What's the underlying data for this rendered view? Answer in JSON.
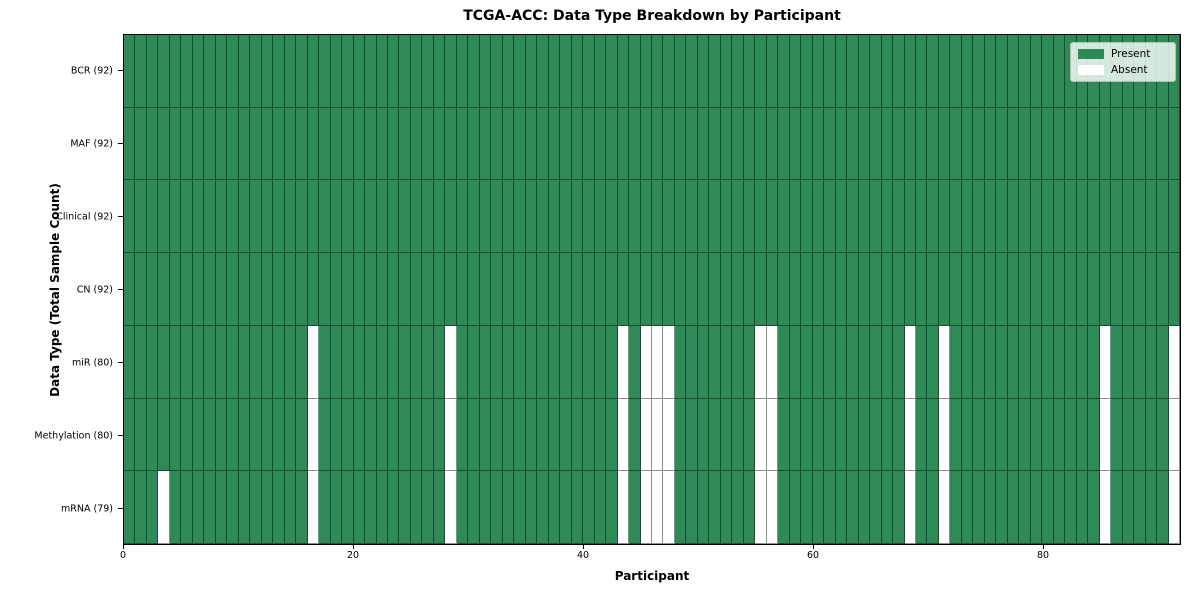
{
  "chart_data": {
    "type": "heatmap",
    "title": "TCGA-ACC: Data Type Breakdown by Participant",
    "xlabel": "Participant",
    "ylabel": "Data Type (Total Sample Count)",
    "n_participants": 92,
    "x_axis": {
      "ticks": [
        0,
        20,
        40,
        60,
        80
      ],
      "range": [
        0,
        92
      ]
    },
    "cell_colors": {
      "present": "#2e8b57",
      "absent": "#ffffff"
    },
    "rows": [
      {
        "label": "BCR (92)",
        "data_type": "BCR",
        "present_count": 92,
        "absent_participants": []
      },
      {
        "label": "MAF (92)",
        "data_type": "MAF",
        "present_count": 92,
        "absent_participants": []
      },
      {
        "label": "Clinical (92)",
        "data_type": "Clinical",
        "present_count": 92,
        "absent_participants": []
      },
      {
        "label": "CN (92)",
        "data_type": "CN",
        "present_count": 92,
        "absent_participants": []
      },
      {
        "label": "miR (80)",
        "data_type": "miR",
        "present_count": 80,
        "absent_participants": [
          16,
          28,
          43,
          45,
          46,
          47,
          55,
          56,
          68,
          71,
          85,
          91
        ]
      },
      {
        "label": "Methylation (80)",
        "data_type": "Methylation",
        "present_count": 80,
        "absent_participants": [
          16,
          28,
          43,
          45,
          46,
          47,
          55,
          56,
          68,
          71,
          85,
          91
        ]
      },
      {
        "label": "mRNA (79)",
        "data_type": "mRNA",
        "present_count": 79,
        "absent_participants": [
          3,
          16,
          28,
          43,
          45,
          46,
          47,
          55,
          56,
          68,
          71,
          85,
          91
        ]
      }
    ],
    "legend": [
      {
        "label": "Present",
        "color": "#2e8b57"
      },
      {
        "label": "Absent",
        "color": "#ffffff"
      }
    ],
    "legend_position": "upper right"
  }
}
